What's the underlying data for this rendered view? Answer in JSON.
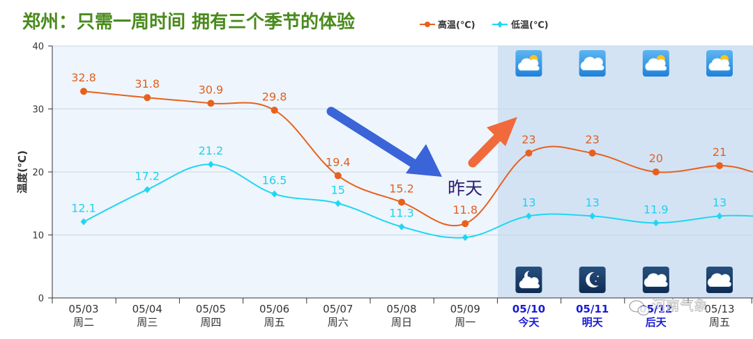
{
  "title": "郑州：只需一周时间  拥有三个季节的体验",
  "watermark": "河南气象",
  "chart_data": {
    "type": "line",
    "title": "郑州：只需一周时间  拥有三个季节的体验",
    "ylabel": "温度(℃)",
    "ylim": [
      0,
      40
    ],
    "yticks": [
      0,
      10,
      20,
      30,
      40
    ],
    "grid": true,
    "legend_position": "top-right",
    "categories": [
      "05/03",
      "05/04",
      "05/05",
      "05/06",
      "05/07",
      "05/08",
      "05/09",
      "05/10",
      "05/11",
      "05/12",
      "05/13"
    ],
    "weekdays": [
      "周二",
      "周三",
      "周四",
      "周五",
      "周六",
      "周日",
      "周一",
      "今天",
      "明天",
      "后天",
      "周五"
    ],
    "forecast_start_index": 7,
    "series": [
      {
        "name": "高温(℃)",
        "color": "#e8601c",
        "marker": "circle",
        "values": [
          32.8,
          31.8,
          30.9,
          29.8,
          19.4,
          15.2,
          11.8,
          23,
          23,
          20,
          21
        ],
        "labels": [
          "32.8",
          "31.8",
          "30.9",
          "29.8",
          "19.4",
          "15.2",
          "11.8",
          "23",
          "23",
          "20",
          "21"
        ]
      },
      {
        "name": "低温(℃)",
        "color": "#1fd6f2",
        "marker": "diamond",
        "values": [
          12.1,
          17.2,
          21.2,
          16.5,
          15,
          11.3,
          9.6,
          13,
          13,
          11.9,
          13
        ],
        "labels": [
          "12.1",
          "17.2",
          "21.2",
          "16.5",
          "15",
          "11.3",
          "",
          "13",
          "13",
          "11.9",
          "13"
        ]
      }
    ],
    "day_icons": [
      "partly-sunny-icon",
      "cloudy-icon",
      "partly-sunny-icon",
      "partly-sunny-icon"
    ],
    "night_icons": [
      "cloudy-moon-icon",
      "moon-icon",
      "cloudy-icon",
      "cloudy-icon"
    ],
    "annotations": [
      {
        "text": "昨天",
        "color": "#2a1e6e"
      }
    ],
    "colors": {
      "history_bg": "#eef5fc",
      "forecast_bg": "#d3e3f4",
      "forecast_label": "#1a1ad6",
      "title": "#4a8a1c",
      "arrow_blue": "#3a64d8",
      "arrow_orange": "#f06a3c"
    }
  }
}
